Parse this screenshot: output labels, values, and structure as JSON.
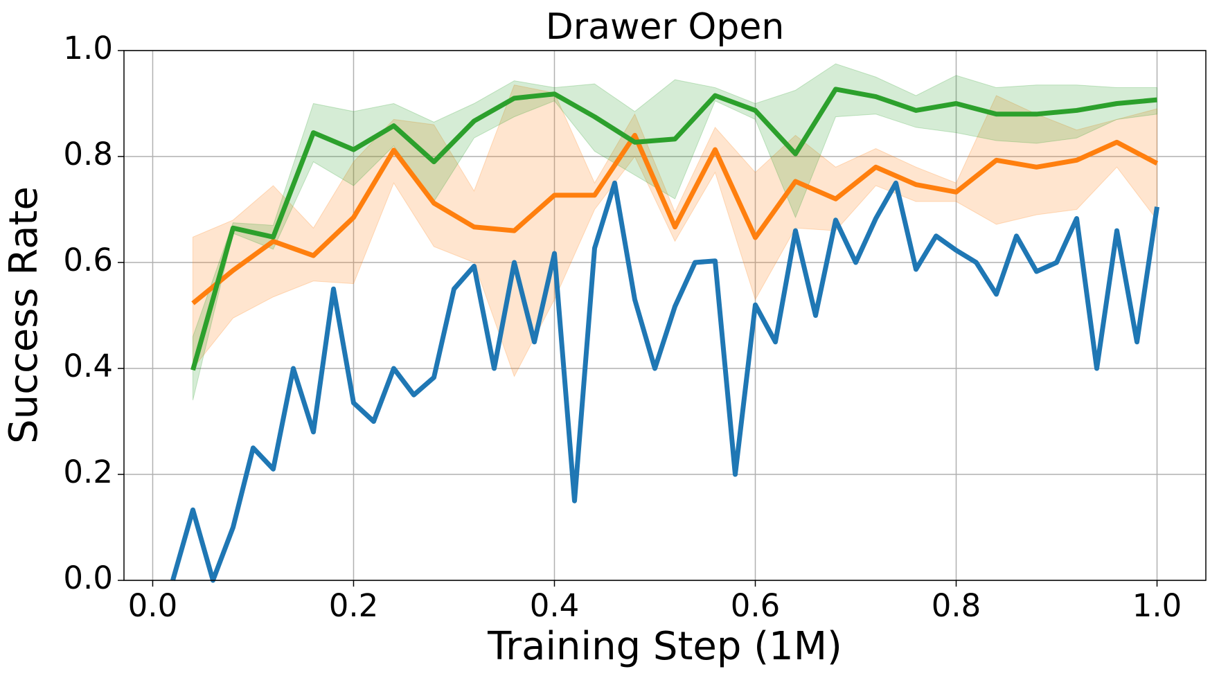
{
  "chart_data": {
    "type": "line",
    "title": "Drawer Open",
    "xlabel": "Training Step (1M)",
    "ylabel": "Success Rate",
    "xlim": [
      -0.0286,
      1.0486
    ],
    "ylim": [
      0,
      1
    ],
    "xticks": [
      {
        "value": 0,
        "label": "0.0"
      },
      0.2,
      0.4,
      0.6,
      0.8,
      {
        "value": 1,
        "label": "1.0"
      }
    ],
    "yticks": [
      {
        "value": 0,
        "label": "0.0"
      },
      0.2,
      0.4,
      0.6,
      0.8,
      {
        "value": 1,
        "label": "1.0"
      }
    ],
    "grid": true,
    "series": [
      {
        "color": "#1f77b4",
        "x": [
          0.02,
          0.04,
          0.06,
          0.08,
          0.1,
          0.12,
          0.14,
          0.16,
          0.18,
          0.2,
          0.22,
          0.24,
          0.26,
          0.28,
          0.3,
          0.32,
          0.34,
          0.36,
          0.38,
          0.4,
          0.42,
          0.44,
          0.46,
          0.48,
          0.5,
          0.52,
          0.54,
          0.56,
          0.58,
          0.6,
          0.62,
          0.64,
          0.66,
          0.68,
          0.7,
          0.72,
          0.74,
          0.76,
          0.78,
          0.8,
          0.82,
          0.84,
          0.86,
          0.88,
          0.9,
          0.92,
          0.94,
          0.96,
          0.98,
          1.0
        ],
        "values": [
          0.0,
          0.133,
          0.0,
          0.1,
          0.25,
          0.21,
          0.4,
          0.28,
          0.55,
          0.335,
          0.3,
          0.4,
          0.35,
          0.383,
          0.55,
          0.593,
          0.4,
          0.6,
          0.45,
          0.617,
          0.15,
          0.627,
          0.75,
          0.53,
          0.4,
          0.517,
          0.6,
          0.603,
          0.2,
          0.52,
          0.45,
          0.66,
          0.5,
          0.68,
          0.6,
          0.683,
          0.75,
          0.587,
          0.65,
          0.623,
          0.6,
          0.54,
          0.65,
          0.583,
          0.6,
          0.683,
          0.4,
          0.66,
          0.45,
          0.705
        ]
      },
      {
        "color": "#ff7f0e",
        "x": [
          0.04,
          0.08,
          0.12,
          0.16,
          0.2,
          0.24,
          0.28,
          0.32,
          0.36,
          0.4,
          0.44,
          0.48,
          0.52,
          0.56,
          0.6,
          0.64,
          0.68,
          0.72,
          0.76,
          0.8,
          0.84,
          0.88,
          0.92,
          0.96,
          1.0
        ],
        "values": [
          0.523,
          0.585,
          0.64,
          0.613,
          0.685,
          0.812,
          0.712,
          0.667,
          0.66,
          0.727,
          0.727,
          0.84,
          0.667,
          0.813,
          0.647,
          0.753,
          0.72,
          0.78,
          0.747,
          0.733,
          0.793,
          0.78,
          0.793,
          0.827,
          0.787
        ],
        "upper": [
          0.648,
          0.68,
          0.745,
          0.665,
          0.79,
          0.87,
          0.86,
          0.735,
          0.935,
          0.92,
          0.75,
          0.88,
          0.695,
          0.855,
          0.77,
          0.84,
          0.78,
          0.815,
          0.78,
          0.75,
          0.915,
          0.88,
          0.85,
          0.87,
          0.89
        ],
        "lower": [
          0.4,
          0.495,
          0.535,
          0.565,
          0.56,
          0.75,
          0.63,
          0.6,
          0.385,
          0.53,
          0.7,
          0.8,
          0.64,
          0.77,
          0.53,
          0.665,
          0.66,
          0.745,
          0.715,
          0.715,
          0.672,
          0.69,
          0.7,
          0.78,
          0.68
        ]
      },
      {
        "color": "#2ca02c",
        "x": [
          0.04,
          0.08,
          0.12,
          0.16,
          0.2,
          0.24,
          0.28,
          0.32,
          0.36,
          0.4,
          0.44,
          0.48,
          0.52,
          0.56,
          0.6,
          0.64,
          0.68,
          0.72,
          0.76,
          0.8,
          0.84,
          0.88,
          0.92,
          0.96,
          1.0
        ],
        "values": [
          0.397,
          0.665,
          0.648,
          0.845,
          0.813,
          0.858,
          0.79,
          0.867,
          0.91,
          0.918,
          0.875,
          0.827,
          0.833,
          0.915,
          0.887,
          0.805,
          0.927,
          0.913,
          0.887,
          0.9,
          0.88,
          0.88,
          0.887,
          0.9,
          0.907
        ],
        "upper": [
          0.46,
          0.675,
          0.67,
          0.9,
          0.885,
          0.9,
          0.865,
          0.9,
          0.943,
          0.93,
          0.937,
          0.885,
          0.945,
          0.93,
          0.9,
          0.925,
          0.975,
          0.95,
          0.915,
          0.953,
          0.93,
          0.935,
          0.935,
          0.93,
          0.93
        ],
        "lower": [
          0.34,
          0.655,
          0.625,
          0.79,
          0.745,
          0.82,
          0.715,
          0.835,
          0.875,
          0.905,
          0.81,
          0.765,
          0.72,
          0.905,
          0.87,
          0.685,
          0.875,
          0.88,
          0.855,
          0.845,
          0.83,
          0.825,
          0.835,
          0.87,
          0.88
        ]
      }
    ]
  }
}
